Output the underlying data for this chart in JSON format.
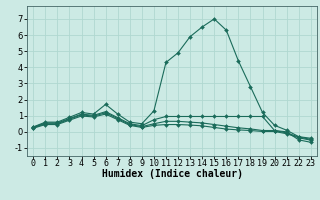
{
  "title": "",
  "xlabel": "Humidex (Indice chaleur)",
  "ylabel": "",
  "bg_color": "#cceae4",
  "grid_color": "#b0d8d0",
  "line_color": "#1a6b5a",
  "ylim": [
    -1.5,
    7.8
  ],
  "xlim": [
    -0.5,
    23.5
  ],
  "yticks": [
    -1,
    0,
    1,
    2,
    3,
    4,
    5,
    6,
    7
  ],
  "xticks": [
    0,
    1,
    2,
    3,
    4,
    5,
    6,
    7,
    8,
    9,
    10,
    11,
    12,
    13,
    14,
    15,
    16,
    17,
    18,
    19,
    20,
    21,
    22,
    23
  ],
  "series": [
    {
      "x": [
        0,
        1,
        2,
        3,
        4,
        5,
        6,
        7,
        8,
        9,
        10,
        11,
        12,
        13,
        14,
        15,
        16,
        17,
        18,
        19,
        20,
        21,
        22,
        23
      ],
      "y": [
        0.3,
        0.6,
        0.6,
        0.9,
        1.2,
        1.1,
        1.7,
        1.1,
        0.6,
        0.5,
        1.3,
        4.3,
        4.9,
        5.9,
        6.5,
        7.0,
        6.3,
        4.4,
        2.8,
        1.2,
        0.4,
        0.1,
        -0.3,
        -0.4
      ],
      "marker": "D",
      "markersize": 2.0
    },
    {
      "x": [
        0,
        1,
        2,
        3,
        4,
        5,
        6,
        7,
        8,
        9,
        10,
        11,
        12,
        13,
        14,
        15,
        16,
        17,
        18,
        19,
        20,
        21,
        22,
        23
      ],
      "y": [
        0.28,
        0.55,
        0.55,
        0.82,
        1.1,
        1.02,
        1.25,
        0.88,
        0.5,
        0.38,
        0.75,
        0.95,
        0.95,
        0.95,
        0.95,
        0.95,
        0.95,
        0.95,
        0.95,
        0.95,
        0.08,
        0.0,
        -0.5,
        -0.65
      ],
      "marker": "D",
      "markersize": 2.0
    },
    {
      "x": [
        0,
        1,
        2,
        3,
        4,
        5,
        6,
        7,
        8,
        9,
        10,
        11,
        12,
        13,
        14,
        15,
        16,
        17,
        18,
        19,
        20,
        21,
        22,
        23
      ],
      "y": [
        0.25,
        0.5,
        0.5,
        0.78,
        1.05,
        0.97,
        1.18,
        0.82,
        0.45,
        0.32,
        0.5,
        0.65,
        0.65,
        0.6,
        0.55,
        0.45,
        0.35,
        0.25,
        0.18,
        0.08,
        0.08,
        -0.07,
        -0.32,
        -0.47
      ],
      "marker": "D",
      "markersize": 2.0
    },
    {
      "x": [
        0,
        1,
        2,
        3,
        4,
        5,
        6,
        7,
        8,
        9,
        10,
        11,
        12,
        13,
        14,
        15,
        16,
        17,
        18,
        19,
        20,
        21,
        22,
        23
      ],
      "y": [
        0.22,
        0.45,
        0.45,
        0.72,
        0.98,
        0.92,
        1.1,
        0.75,
        0.4,
        0.27,
        0.4,
        0.45,
        0.45,
        0.42,
        0.37,
        0.27,
        0.17,
        0.12,
        0.08,
        0.02,
        0.02,
        -0.12,
        -0.37,
        -0.52
      ],
      "marker": "D",
      "markersize": 2.0
    }
  ],
  "xlabel_fontsize": 7,
  "tick_fontsize": 6,
  "linewidth": 0.8
}
